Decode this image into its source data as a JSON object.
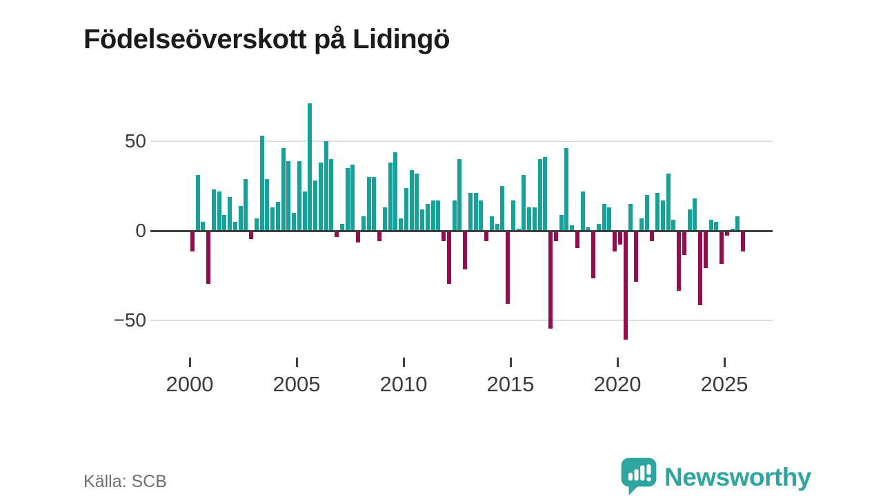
{
  "page": {
    "title": "Födelseöverskott på Lidingö",
    "source": "Källa: SCB"
  },
  "branding": {
    "name": "Newsworthy",
    "icon": "newsworthy-speech-bubble-chart-icon"
  },
  "colors": {
    "positive_bar": "#12a39c",
    "negative_bar": "#9b0a4c",
    "zero_line": "#3f3f3f",
    "gridline": "#dedede",
    "axis_text": "#3b3b3b",
    "title_text": "#1b1b1b",
    "source_text": "#6f6f6f",
    "brand_teal": "#2ca69f"
  },
  "chart_data": {
    "type": "bar",
    "title": "Födelseöverskott på Lidingö",
    "frequency": "quarterly",
    "x_start": "2000-Q1",
    "x_end": "2025-Q4",
    "x_tick_labels": [
      "2000",
      "2005",
      "2010",
      "2015",
      "2020",
      "2025"
    ],
    "x_tick_years": [
      2000,
      2005,
      2010,
      2015,
      2020,
      2025
    ],
    "y_tick_values": [
      50,
      0,
      -50
    ],
    "y_tick_labels": [
      "50",
      "0",
      "−50"
    ],
    "ylim": [
      -65,
      78
    ],
    "grid": true,
    "legend": "none",
    "series": [
      {
        "name": "Födelseöverskott",
        "values": [
          -11,
          31,
          5,
          -29,
          23,
          22,
          9,
          19,
          5,
          14,
          29,
          -4,
          7,
          53,
          29,
          13,
          16,
          46,
          39,
          10,
          39,
          22,
          71,
          28,
          38,
          50,
          40,
          -3,
          4,
          35,
          37,
          -6,
          8,
          30,
          30,
          -5,
          13,
          38,
          44,
          7,
          24,
          34,
          32,
          12,
          15,
          17,
          17,
          -5,
          -29,
          17,
          40,
          -21,
          21,
          21,
          17,
          -5,
          8,
          4,
          25,
          -40,
          17,
          1,
          31,
          13,
          13,
          40,
          41,
          -54,
          -5,
          9,
          46,
          3,
          -9,
          22,
          2,
          -26,
          4,
          15,
          13,
          -11,
          -7,
          -60,
          15,
          -28,
          7,
          20,
          -5,
          21,
          17,
          32,
          6,
          -33,
          -13,
          12,
          18,
          -41,
          -20,
          6,
          5,
          -18,
          -2,
          1,
          8,
          -11
        ]
      }
    ]
  }
}
